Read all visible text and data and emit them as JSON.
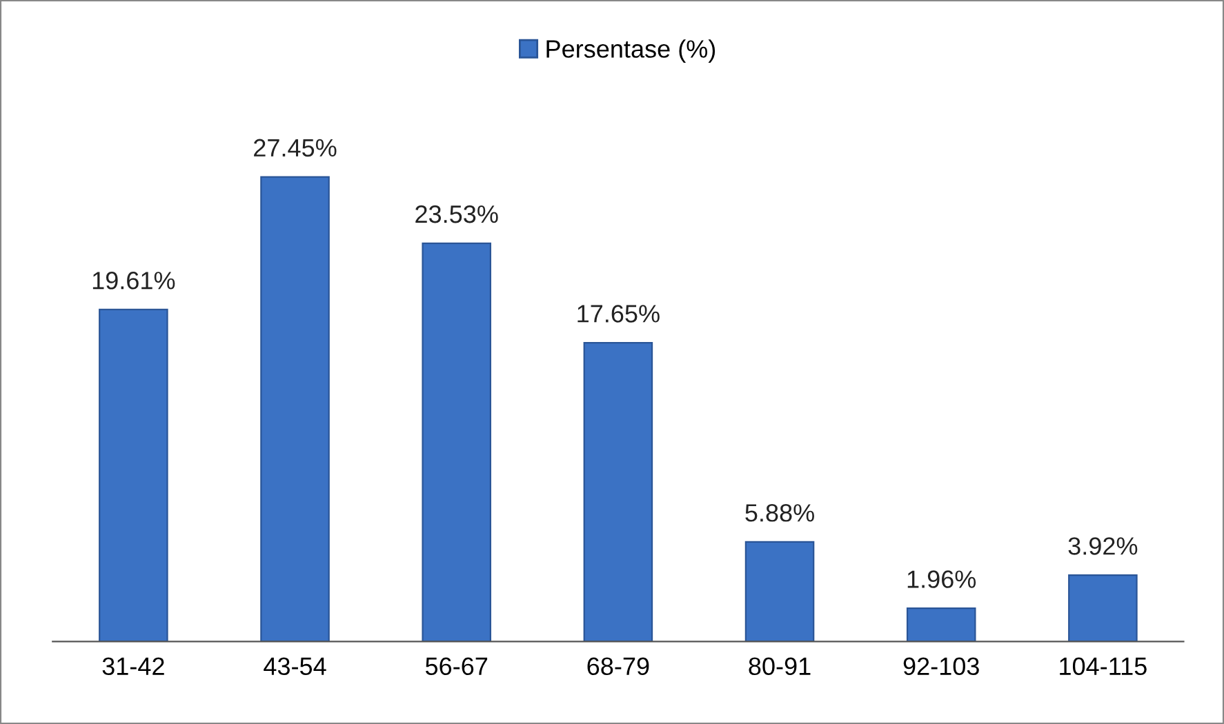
{
  "chart_data": {
    "type": "bar",
    "categories": [
      "31-42",
      "43-54",
      "56-67",
      "68-79",
      "80-91",
      "92-103",
      "104-115"
    ],
    "series": [
      {
        "name": "Persentase (%)",
        "color": "#3b72c4",
        "values": [
          19.61,
          27.45,
          23.53,
          17.65,
          5.88,
          1.96,
          3.92
        ],
        "value_labels": [
          "19.61%",
          "27.45%",
          "23.53%",
          "17.65%",
          "5.88%",
          "1.96%",
          "3.92%"
        ]
      }
    ],
    "legend": "top",
    "grid": false,
    "tick_labels": "x"
  }
}
